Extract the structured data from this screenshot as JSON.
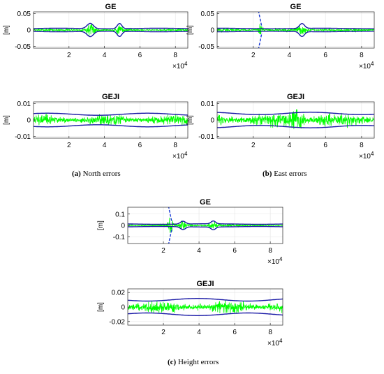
{
  "figure": {
    "captions": [
      {
        "tag": "(a)",
        "text": " North errors"
      },
      {
        "tag": "(b)",
        "text": " East errors"
      },
      {
        "tag": "(c)",
        "text": " Height errors"
      }
    ]
  },
  "chart_data": [
    {
      "type": "line",
      "panel": "a-top",
      "title": "GE",
      "ylabel": "[m]",
      "xlim": [
        0,
        87000
      ],
      "ylim": [
        -0.055,
        0.055
      ],
      "xticks": [
        20000,
        40000,
        60000,
        80000
      ],
      "xtick_labels": [
        "2",
        "4",
        "6",
        "8"
      ],
      "yticks": [
        -0.05,
        0,
        0.05
      ],
      "ytick_labels": [
        "-0.05",
        "0",
        "0.05"
      ],
      "x_multiplier": "×10^4",
      "grid": true,
      "series": [
        {
          "style": "scatter",
          "color": "#00ff00",
          "noise": 0.003,
          "bursts": [
            {
              "x": 32000,
              "amp": 0.012,
              "w": 3500
            },
            {
              "x": 48500,
              "amp": 0.009,
              "w": 2500
            }
          ]
        },
        {
          "style": "line",
          "color": "#1a1aa6",
          "base": 0.0045,
          "bursts": [
            {
              "x": 32000,
              "amp": 0.016,
              "w": 2500
            },
            {
              "x": 48500,
              "amp": 0.016,
              "w": 1800
            }
          ]
        }
      ]
    },
    {
      "type": "line",
      "panel": "a-bottom",
      "title": "GEJI",
      "ylabel": "[m]",
      "xlim": [
        0,
        87000
      ],
      "ylim": [
        -0.011,
        0.011
      ],
      "xticks": [
        20000,
        40000,
        60000,
        80000
      ],
      "xtick_labels": [
        "2",
        "4",
        "6",
        "8"
      ],
      "yticks": [
        -0.01,
        0,
        0.01
      ],
      "ytick_labels": [
        "-0.01",
        "0",
        "0.01"
      ],
      "x_multiplier": "×10^4",
      "grid": true,
      "series": [
        {
          "style": "scatter",
          "color": "#00ff00",
          "noise": 0.0022,
          "bursts": []
        },
        {
          "style": "line",
          "color": "#1a1aa6",
          "base": 0.0035,
          "bursts": []
        }
      ]
    },
    {
      "type": "line",
      "panel": "b-top",
      "title": "GE",
      "ylabel": "[m]",
      "xlim": [
        0,
        87000
      ],
      "ylim": [
        -0.055,
        0.055
      ],
      "xticks": [
        20000,
        40000,
        60000,
        80000
      ],
      "xtick_labels": [
        "2",
        "4",
        "6",
        "8"
      ],
      "yticks": [
        -0.05,
        0,
        0.05
      ],
      "ytick_labels": [
        "-0.05",
        "0",
        "0.05"
      ],
      "x_multiplier": "×10^4",
      "grid": true,
      "spike_x": 24000,
      "series": [
        {
          "style": "scatter",
          "color": "#00ff00",
          "noise": 0.004,
          "bursts": [
            {
              "x": 24000,
              "amp": 0.015,
              "w": 1200
            },
            {
              "x": 47000,
              "amp": 0.007,
              "w": 3000
            }
          ]
        },
        {
          "style": "line",
          "color": "#1a1aa6",
          "base": 0.0045,
          "bursts": [
            {
              "x": 47000,
              "amp": 0.015,
              "w": 2000
            }
          ]
        }
      ]
    },
    {
      "type": "line",
      "panel": "b-bottom",
      "title": "GEJI",
      "ylabel": "[m]",
      "xlim": [
        0,
        87000
      ],
      "ylim": [
        -0.011,
        0.011
      ],
      "xticks": [
        20000,
        40000,
        60000,
        80000
      ],
      "xtick_labels": [
        "2",
        "4",
        "6",
        "8"
      ],
      "yticks": [
        -0.01,
        0,
        0.01
      ],
      "ytick_labels": [
        "-0.01",
        "0",
        "0.01"
      ],
      "x_multiplier": "×10^4",
      "grid": true,
      "series": [
        {
          "style": "scatter",
          "color": "#00ff00",
          "noise": 0.0028,
          "bursts": [
            {
              "x": 44000,
              "amp": 0.004,
              "w": 4000
            }
          ]
        },
        {
          "style": "line",
          "color": "#1a1aa6",
          "base": 0.004,
          "bursts": []
        }
      ]
    },
    {
      "type": "line",
      "panel": "c-top",
      "title": "GE",
      "ylabel": "[m]",
      "xlim": [
        0,
        87000
      ],
      "ylim": [
        -0.16,
        0.16
      ],
      "xticks": [
        20000,
        40000,
        60000,
        80000
      ],
      "xtick_labels": [
        "2",
        "4",
        "6",
        "8"
      ],
      "yticks": [
        -0.1,
        0,
        0.1
      ],
      "ytick_labels": [
        "-0.1",
        "0",
        "0.1"
      ],
      "x_multiplier": "×10^4",
      "grid": true,
      "spike_x": 24000,
      "series": [
        {
          "style": "scatter",
          "color": "#00ff00",
          "noise": 0.008,
          "bursts": [
            {
              "x": 24000,
              "amp": 0.05,
              "w": 1500
            },
            {
              "x": 31000,
              "amp": 0.02,
              "w": 2500
            },
            {
              "x": 48000,
              "amp": 0.02,
              "w": 3000
            }
          ]
        },
        {
          "style": "line",
          "color": "#1a1aa6",
          "base": 0.012,
          "bursts": [
            {
              "x": 31000,
              "amp": 0.025,
              "w": 2000
            },
            {
              "x": 48000,
              "amp": 0.025,
              "w": 1800
            }
          ]
        }
      ]
    },
    {
      "type": "line",
      "panel": "c-bottom",
      "title": "GEJI",
      "ylabel": "[m]",
      "xlim": [
        0,
        87000
      ],
      "ylim": [
        -0.025,
        0.025
      ],
      "xticks": [
        20000,
        40000,
        60000,
        80000
      ],
      "xtick_labels": [
        "2",
        "4",
        "6",
        "8"
      ],
      "yticks": [
        -0.02,
        0,
        0.02
      ],
      "ytick_labels": [
        "-0.02",
        "0",
        "0.02"
      ],
      "x_multiplier": "×10^4",
      "grid": true,
      "series": [
        {
          "style": "scatter",
          "color": "#00ff00",
          "noise": 0.006,
          "bursts": []
        },
        {
          "style": "line",
          "color": "#1a1aa6",
          "base": 0.01,
          "bursts": []
        }
      ]
    }
  ]
}
